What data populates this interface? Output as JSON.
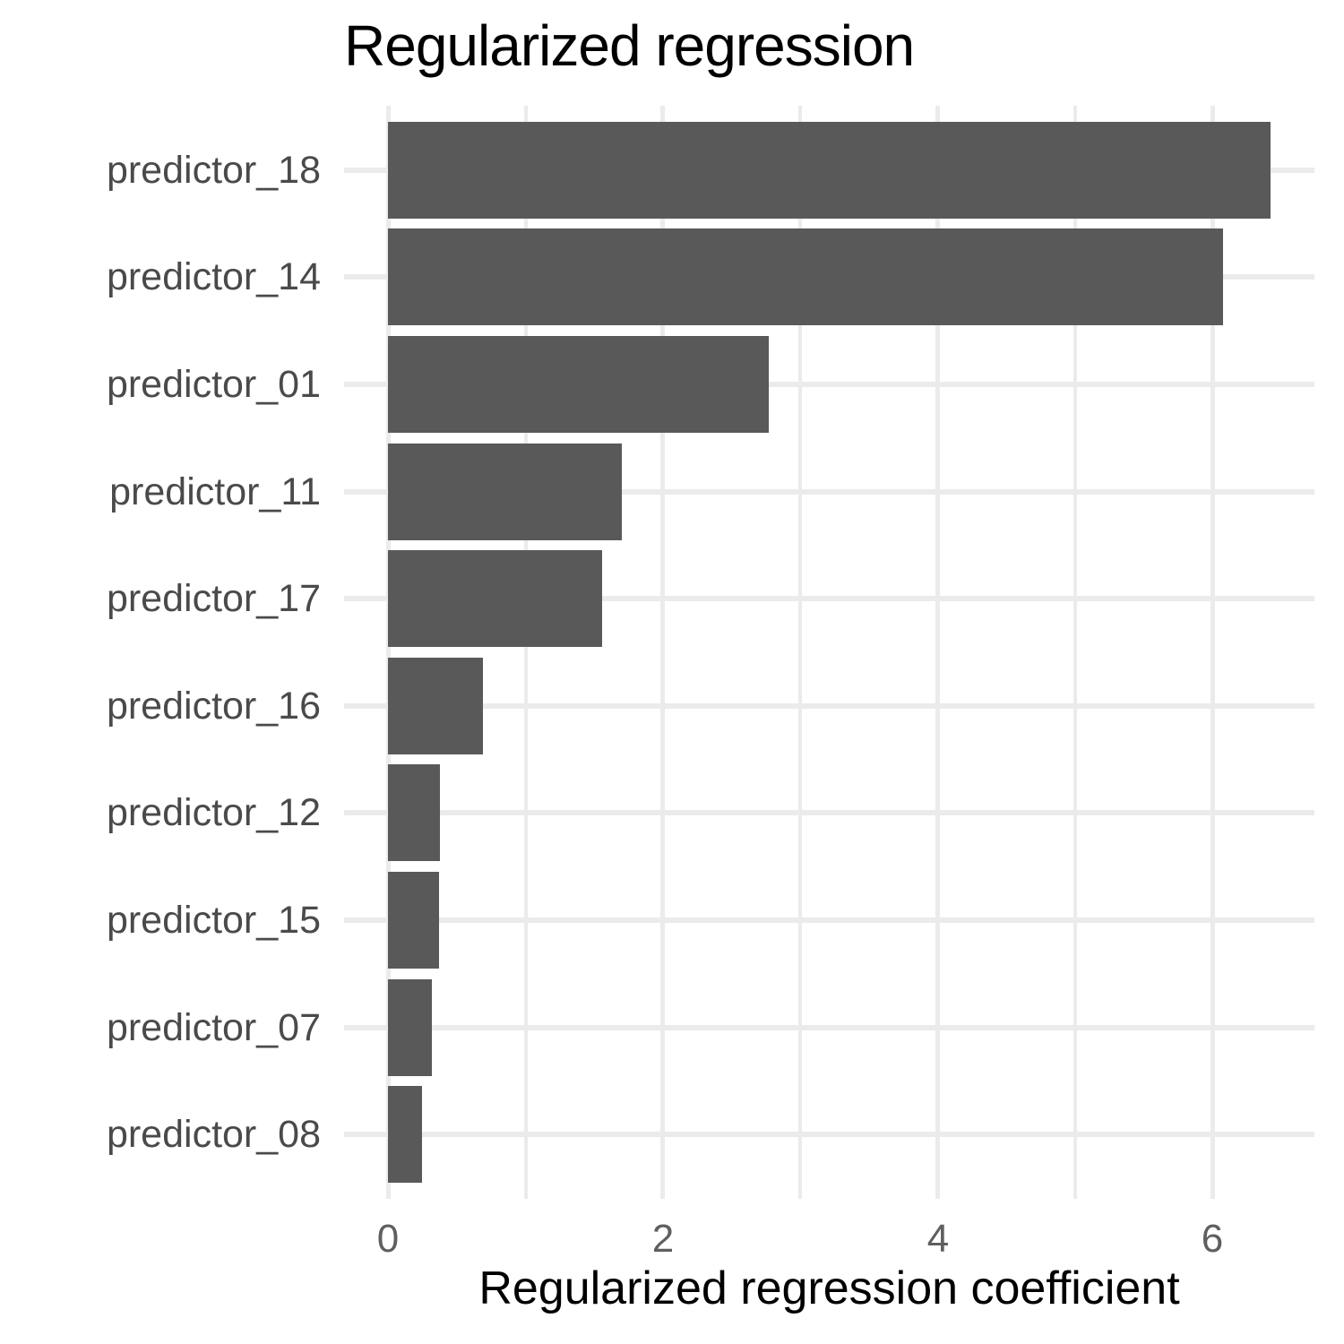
{
  "chart_data": {
    "type": "bar",
    "orientation": "horizontal",
    "title": "Regularized regression",
    "xlabel": "Regularized regression coefficient",
    "ylabel": "",
    "categories": [
      "predictor_18",
      "predictor_14",
      "predictor_01",
      "predictor_11",
      "predictor_17",
      "predictor_16",
      "predictor_12",
      "predictor_15",
      "predictor_07",
      "predictor_08"
    ],
    "values": [
      6.42,
      6.08,
      2.77,
      1.7,
      1.56,
      0.69,
      0.38,
      0.37,
      0.32,
      0.25
    ],
    "x_major_ticks": [
      0,
      2,
      4,
      6
    ],
    "x_minor_gridlines": [
      1,
      3,
      5
    ],
    "xlim": [
      0,
      6.75
    ],
    "grid": true,
    "legend": false,
    "bar_width_fraction": 0.9,
    "colors": {
      "bar": "#595959",
      "grid": "#ebebeb",
      "y_axis_text": "#4a4a4a",
      "x_tick_text": "#5f5f5f",
      "title": "#000000",
      "axis_title": "#000000",
      "background": "#ffffff"
    }
  }
}
